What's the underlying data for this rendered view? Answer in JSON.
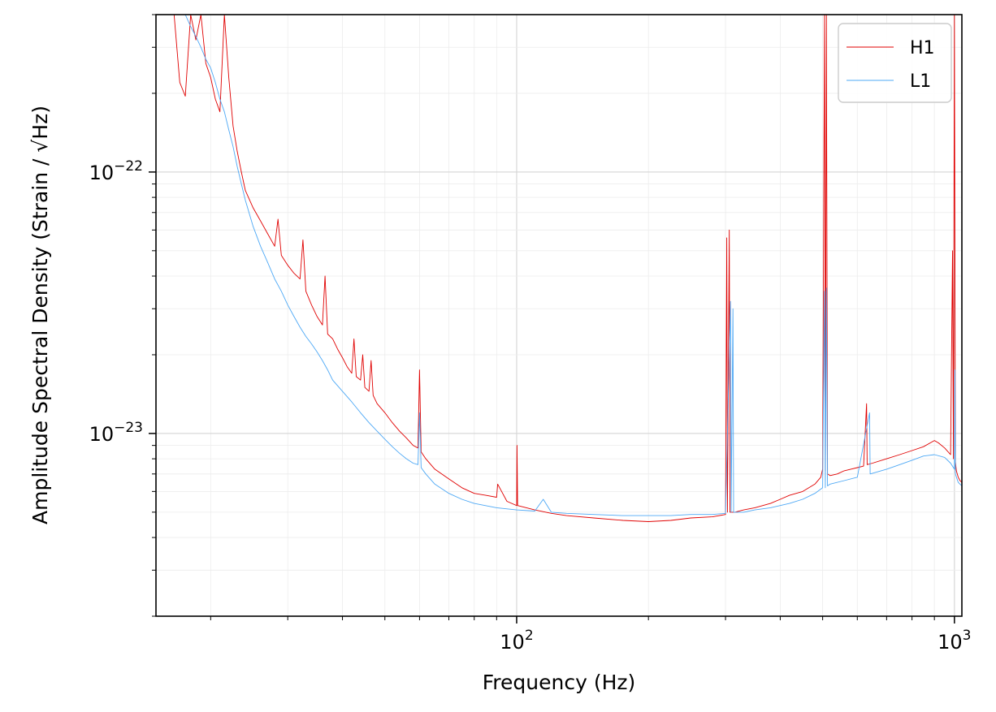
{
  "chart_data": {
    "type": "line",
    "title": "",
    "xlabel": "Frequency (Hz)",
    "ylabel": "Amplitude Spectral Density (Strain / √Hz)",
    "xscale": "log",
    "yscale": "log",
    "xlim": [
      15,
      1040
    ],
    "ylim": [
      2e-24,
      4e-22
    ],
    "grid": true,
    "legend_position": "top-right",
    "x_ticks": [
      {
        "value": 100,
        "base": "10",
        "exp": "2"
      },
      {
        "value": 1000,
        "base": "10",
        "exp": "3"
      }
    ],
    "y_ticks": [
      {
        "value": 1e-23,
        "base": "10",
        "exp": "−23"
      },
      {
        "value": 1e-22,
        "base": "10",
        "exp": "−22"
      }
    ],
    "series": [
      {
        "name": "H1",
        "color": "#e00000",
        "points": [
          [
            16.5,
            4e-22
          ],
          [
            17.0,
            2.2e-22
          ],
          [
            17.5,
            1.95e-22
          ],
          [
            18.0,
            4e-22
          ],
          [
            18.5,
            3.2e-22
          ],
          [
            19.0,
            4e-22
          ],
          [
            19.5,
            2.6e-22
          ],
          [
            20.0,
            2.3e-22
          ],
          [
            20.5,
            1.9e-22
          ],
          [
            21.0,
            1.7e-22
          ],
          [
            21.5,
            4e-22
          ],
          [
            22.0,
            2.3e-22
          ],
          [
            22.5,
            1.5e-22
          ],
          [
            23.0,
            1.2e-22
          ],
          [
            23.5,
            1e-22
          ],
          [
            24.0,
            8.5e-23
          ],
          [
            25.0,
            7.3e-23
          ],
          [
            26.0,
            6.5e-23
          ],
          [
            27.0,
            5.8e-23
          ],
          [
            28.0,
            5.2e-23
          ],
          [
            28.5,
            6.6e-23
          ],
          [
            29.0,
            4.8e-23
          ],
          [
            30.0,
            4.4e-23
          ],
          [
            31.0,
            4.1e-23
          ],
          [
            32.0,
            3.9e-23
          ],
          [
            32.5,
            5.5e-23
          ],
          [
            33.0,
            3.5e-23
          ],
          [
            34.0,
            3.1e-23
          ],
          [
            35.0,
            2.8e-23
          ],
          [
            36.0,
            2.6e-23
          ],
          [
            36.5,
            4e-23
          ],
          [
            37.0,
            2.4e-23
          ],
          [
            38.0,
            2.3e-23
          ],
          [
            39.0,
            2.1e-23
          ],
          [
            40.0,
            1.95e-23
          ],
          [
            41.0,
            1.8e-23
          ],
          [
            42.0,
            1.7e-23
          ],
          [
            42.5,
            2.3e-23
          ],
          [
            43.0,
            1.65e-23
          ],
          [
            44.0,
            1.6e-23
          ],
          [
            44.5,
            2e-23
          ],
          [
            45.0,
            1.5e-23
          ],
          [
            46.0,
            1.45e-23
          ],
          [
            46.5,
            1.9e-23
          ],
          [
            47.0,
            1.4e-23
          ],
          [
            48.0,
            1.3e-23
          ],
          [
            50.0,
            1.2e-23
          ],
          [
            52.0,
            1.1e-23
          ],
          [
            54.0,
            1.02e-23
          ],
          [
            56.0,
            9.6e-24
          ],
          [
            58.0,
            9e-24
          ],
          [
            59.5,
            8.8e-24
          ],
          [
            60.0,
            1.75e-23
          ],
          [
            60.5,
            8.5e-24
          ],
          [
            62.0,
            8e-24
          ],
          [
            65.0,
            7.3e-24
          ],
          [
            70.0,
            6.7e-24
          ],
          [
            75.0,
            6.2e-24
          ],
          [
            80.0,
            5.9e-24
          ],
          [
            85.0,
            5.8e-24
          ],
          [
            90.0,
            5.7e-24
          ],
          [
            90.5,
            6.4e-24
          ],
          [
            95.0,
            5.5e-24
          ],
          [
            100.0,
            5.3e-24
          ],
          [
            100.2,
            9e-24
          ],
          [
            100.5,
            5.3e-24
          ],
          [
            110.0,
            5.1e-24
          ],
          [
            120.0,
            4.95e-24
          ],
          [
            130.0,
            4.85e-24
          ],
          [
            150.0,
            4.75e-24
          ],
          [
            175.0,
            4.65e-24
          ],
          [
            200.0,
            4.6e-24
          ],
          [
            225.0,
            4.65e-24
          ],
          [
            250.0,
            4.75e-24
          ],
          [
            280.0,
            4.8e-24
          ],
          [
            300.0,
            4.9e-24
          ],
          [
            302.0,
            5.6e-23
          ],
          [
            303.0,
            5e-24
          ],
          [
            306.0,
            6e-23
          ],
          [
            307.0,
            5e-24
          ],
          [
            315.0,
            5e-24
          ],
          [
            330.0,
            5.1e-24
          ],
          [
            350.0,
            5.2e-24
          ],
          [
            380.0,
            5.4e-24
          ],
          [
            400.0,
            5.6e-24
          ],
          [
            420.0,
            5.8e-24
          ],
          [
            450.0,
            6e-24
          ],
          [
            480.0,
            6.4e-24
          ],
          [
            495.0,
            6.8e-24
          ],
          [
            500.0,
            7.3e-24
          ],
          [
            505.0,
            4e-22
          ],
          [
            507.0,
            7.2e-24
          ],
          [
            510.0,
            4e-22
          ],
          [
            513.0,
            7e-24
          ],
          [
            520.0,
            6.9e-24
          ],
          [
            540.0,
            7e-24
          ],
          [
            560.0,
            7.2e-24
          ],
          [
            580.0,
            7.3e-24
          ],
          [
            600.0,
            7.4e-24
          ],
          [
            620.0,
            7.5e-24
          ],
          [
            630.0,
            1.3e-23
          ],
          [
            632.0,
            7.6e-24
          ],
          [
            650.0,
            7.7e-24
          ],
          [
            700.0,
            8e-24
          ],
          [
            750.0,
            8.3e-24
          ],
          [
            800.0,
            8.6e-24
          ],
          [
            850.0,
            8.9e-24
          ],
          [
            880.0,
            9.2e-24
          ],
          [
            900.0,
            9.4e-24
          ],
          [
            920.0,
            9.2e-24
          ],
          [
            950.0,
            8.8e-24
          ],
          [
            980.0,
            8.3e-24
          ],
          [
            990.0,
            5e-23
          ],
          [
            995.0,
            8e-24
          ],
          [
            1000.0,
            4e-22
          ],
          [
            1005.0,
            7.8e-24
          ],
          [
            1010.0,
            7.2e-24
          ],
          [
            1020.0,
            6.8e-24
          ],
          [
            1030.0,
            6.6e-24
          ],
          [
            1040.0,
            6.5e-24
          ]
        ]
      },
      {
        "name": "L1",
        "color": "#4da8f5",
        "points": [
          [
            17.5,
            4e-22
          ],
          [
            18.0,
            3.6e-22
          ],
          [
            18.5,
            3.3e-22
          ],
          [
            19.0,
            3e-22
          ],
          [
            19.5,
            2.7e-22
          ],
          [
            20.0,
            2.5e-22
          ],
          [
            20.5,
            2.2e-22
          ],
          [
            21.0,
            1.9e-22
          ],
          [
            21.5,
            1.7e-22
          ],
          [
            22.0,
            1.45e-22
          ],
          [
            22.5,
            1.25e-22
          ],
          [
            23.0,
            1.05e-22
          ],
          [
            23.5,
            9e-23
          ],
          [
            24.0,
            7.8e-23
          ],
          [
            25.0,
            6.2e-23
          ],
          [
            26.0,
            5.2e-23
          ],
          [
            27.0,
            4.5e-23
          ],
          [
            28.0,
            3.9e-23
          ],
          [
            29.0,
            3.5e-23
          ],
          [
            30.0,
            3.1e-23
          ],
          [
            31.0,
            2.8e-23
          ],
          [
            32.0,
            2.55e-23
          ],
          [
            33.0,
            2.35e-23
          ],
          [
            34.0,
            2.2e-23
          ],
          [
            35.0,
            2.05e-23
          ],
          [
            36.0,
            1.9e-23
          ],
          [
            37.0,
            1.75e-23
          ],
          [
            38.0,
            1.6e-23
          ],
          [
            40.0,
            1.45e-23
          ],
          [
            42.0,
            1.32e-23
          ],
          [
            44.0,
            1.2e-23
          ],
          [
            46.0,
            1.1e-23
          ],
          [
            48.0,
            1.02e-23
          ],
          [
            50.0,
            9.5e-24
          ],
          [
            52.0,
            8.9e-24
          ],
          [
            54.0,
            8.4e-24
          ],
          [
            56.0,
            8e-24
          ],
          [
            58.0,
            7.7e-24
          ],
          [
            59.5,
            7.6e-24
          ],
          [
            60.0,
            1.2e-23
          ],
          [
            60.5,
            7.4e-24
          ],
          [
            62.0,
            7e-24
          ],
          [
            65.0,
            6.4e-24
          ],
          [
            70.0,
            5.9e-24
          ],
          [
            75.0,
            5.6e-24
          ],
          [
            80.0,
            5.4e-24
          ],
          [
            90.0,
            5.2e-24
          ],
          [
            100.0,
            5.1e-24
          ],
          [
            110.0,
            5.05e-24
          ],
          [
            115.0,
            5.6e-24
          ],
          [
            120.0,
            5e-24
          ],
          [
            130.0,
            4.95e-24
          ],
          [
            150.0,
            4.9e-24
          ],
          [
            175.0,
            4.85e-24
          ],
          [
            200.0,
            4.85e-24
          ],
          [
            225.0,
            4.85e-24
          ],
          [
            250.0,
            4.9e-24
          ],
          [
            280.0,
            4.9e-24
          ],
          [
            300.0,
            4.95e-24
          ],
          [
            308.0,
            3.2e-23
          ],
          [
            309.0,
            5e-24
          ],
          [
            312.0,
            3e-23
          ],
          [
            313.0,
            5e-24
          ],
          [
            330.0,
            5e-24
          ],
          [
            350.0,
            5.1e-24
          ],
          [
            380.0,
            5.2e-24
          ],
          [
            400.0,
            5.3e-24
          ],
          [
            420.0,
            5.4e-24
          ],
          [
            450.0,
            5.6e-24
          ],
          [
            480.0,
            5.9e-24
          ],
          [
            500.0,
            6.2e-24
          ],
          [
            505.0,
            3.5e-23
          ],
          [
            507.0,
            6.2e-24
          ],
          [
            510.0,
            3.6e-23
          ],
          [
            513.0,
            6.3e-24
          ],
          [
            520.0,
            6.4e-24
          ],
          [
            560.0,
            6.6e-24
          ],
          [
            600.0,
            6.8e-24
          ],
          [
            640.0,
            1.2e-23
          ],
          [
            642.0,
            7e-24
          ],
          [
            700.0,
            7.3e-24
          ],
          [
            750.0,
            7.6e-24
          ],
          [
            800.0,
            7.9e-24
          ],
          [
            850.0,
            8.2e-24
          ],
          [
            900.0,
            8.3e-24
          ],
          [
            950.0,
            8.1e-24
          ],
          [
            980.0,
            7.7e-24
          ],
          [
            1000.0,
            7.3e-24
          ],
          [
            1003.0,
            1.75e-23
          ],
          [
            1005.0,
            7e-24
          ],
          [
            1020.0,
            6.5e-24
          ],
          [
            1040.0,
            6.3e-24
          ]
        ]
      }
    ]
  }
}
